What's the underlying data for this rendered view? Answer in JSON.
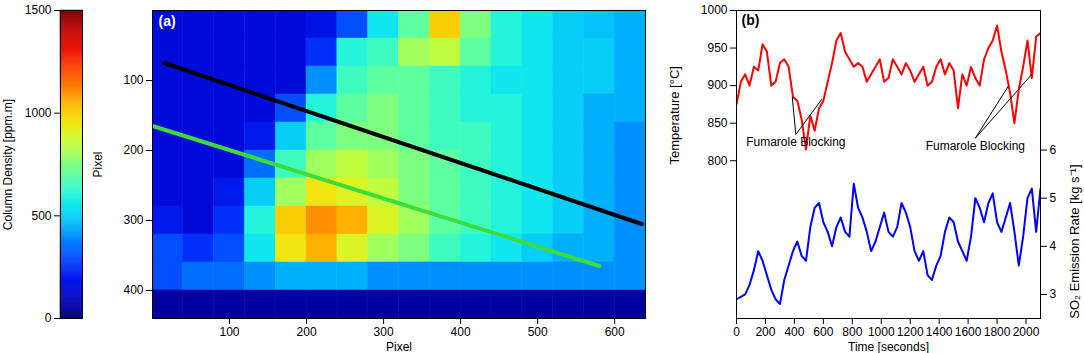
{
  "chart_data": [
    {
      "type": "heatmap",
      "panel_label": "(a)",
      "xlabel": "Pixel",
      "ylabel": "Pixel",
      "xlim": [
        0,
        640
      ],
      "xticks": [
        100,
        200,
        300,
        400,
        500,
        600
      ],
      "ylim": [
        0,
        440
      ],
      "yticks": [
        100,
        200,
        300,
        400
      ],
      "heatmap": {
        "x": [
          20,
          60,
          100,
          140,
          180,
          220,
          260,
          300,
          340,
          380,
          420,
          460,
          500,
          540,
          580,
          620
        ],
        "y": [
          20,
          60,
          100,
          140,
          180,
          220,
          260,
          300,
          340,
          380,
          420
        ],
        "values": [
          [
            150,
            150,
            150,
            150,
            150,
            180,
            300,
            550,
            700,
            1000,
            750,
            600,
            550,
            500,
            480,
            450
          ],
          [
            150,
            150,
            150,
            150,
            150,
            250,
            600,
            650,
            800,
            850,
            700,
            600,
            550,
            500,
            500,
            450
          ],
          [
            150,
            150,
            150,
            150,
            150,
            400,
            650,
            700,
            700,
            650,
            600,
            550,
            550,
            500,
            500,
            450
          ],
          [
            150,
            150,
            150,
            150,
            300,
            600,
            700,
            750,
            700,
            650,
            600,
            600,
            550,
            500,
            450,
            450
          ],
          [
            150,
            150,
            150,
            200,
            500,
            700,
            750,
            750,
            700,
            650,
            650,
            600,
            550,
            500,
            450,
            400
          ],
          [
            150,
            150,
            150,
            350,
            650,
            800,
            850,
            800,
            750,
            700,
            650,
            600,
            550,
            500,
            450,
            400
          ],
          [
            150,
            150,
            200,
            500,
            800,
            950,
            900,
            850,
            750,
            700,
            650,
            600,
            550,
            500,
            450,
            400
          ],
          [
            200,
            150,
            250,
            600,
            1000,
            1100,
            1050,
            900,
            800,
            700,
            650,
            600,
            550,
            500,
            450,
            400
          ],
          [
            300,
            250,
            300,
            550,
            950,
            1050,
            900,
            800,
            750,
            650,
            600,
            550,
            500,
            450,
            450,
            400
          ],
          [
            300,
            350,
            350,
            400,
            450,
            450,
            450,
            400,
            400,
            400,
            400,
            400,
            400,
            400,
            400,
            400
          ],
          [
            50,
            50,
            50,
            50,
            50,
            50,
            50,
            50,
            50,
            50,
            50,
            50,
            50,
            50,
            50,
            50
          ]
        ]
      },
      "colorbar": {
        "label": "Column Density [ppm.m]",
        "range": [
          0,
          1500
        ],
        "ticks": [
          0,
          500,
          1000,
          1500
        ]
      },
      "lines": [
        {
          "color": "#000000",
          "x": [
            15,
            635
          ],
          "y": [
            75,
            305
          ]
        },
        {
          "color": "#3cdc3c",
          "x": [
            0,
            580
          ],
          "y": [
            165,
            365
          ]
        }
      ]
    },
    {
      "type": "line",
      "panel_label": "(b)",
      "xlabel": "Time [seconds]",
      "ylabel": "Temperature [°C]",
      "y2label": "SO₂ Emission Rate [kg s⁻¹]",
      "xlim": [
        0,
        2100
      ],
      "xticks": [
        0,
        200,
        400,
        600,
        800,
        1000,
        1200,
        1400,
        1600,
        1800,
        2000
      ],
      "ylim": [
        590,
        1000
      ],
      "yticks": [
        800,
        850,
        900,
        950,
        1000
      ],
      "y2lim": [
        2.5,
        8.9
      ],
      "y2ticks": [
        3,
        4,
        5,
        6
      ],
      "x": [
        0,
        30,
        60,
        90,
        120,
        150,
        180,
        210,
        240,
        270,
        300,
        330,
        360,
        390,
        420,
        450,
        480,
        510,
        540,
        570,
        600,
        630,
        660,
        690,
        720,
        750,
        780,
        810,
        840,
        870,
        900,
        930,
        960,
        990,
        1020,
        1050,
        1080,
        1110,
        1140,
        1170,
        1200,
        1230,
        1260,
        1290,
        1320,
        1350,
        1380,
        1410,
        1440,
        1470,
        1500,
        1530,
        1560,
        1590,
        1620,
        1650,
        1680,
        1710,
        1740,
        1770,
        1800,
        1830,
        1860,
        1890,
        1920,
        1950,
        1980,
        2010,
        2040,
        2070,
        2100
      ],
      "series": [
        {
          "color": "#ff0000",
          "axis": "y",
          "values": [
            875,
            905,
            915,
            900,
            925,
            920,
            955,
            945,
            900,
            905,
            930,
            935,
            925,
            885,
            880,
            855,
            815,
            860,
            840,
            870,
            880,
            905,
            930,
            960,
            970,
            945,
            935,
            925,
            930,
            925,
            905,
            915,
            925,
            935,
            905,
            910,
            935,
            925,
            915,
            930,
            920,
            905,
            915,
            925,
            900,
            905,
            925,
            935,
            915,
            930,
            920,
            870,
            915,
            900,
            925,
            910,
            900,
            935,
            950,
            960,
            980,
            945,
            920,
            890,
            850,
            895,
            925,
            960,
            910,
            965,
            970
          ]
        },
        {
          "color": "#0000ff",
          "axis": "y2",
          "values": [
            2.9,
            2.95,
            3.0,
            3.2,
            3.5,
            3.9,
            3.7,
            3.4,
            3.1,
            2.9,
            2.8,
            3.3,
            3.6,
            3.9,
            4.1,
            3.8,
            3.7,
            4.4,
            4.8,
            4.9,
            4.5,
            4.3,
            4.0,
            4.4,
            4.6,
            4.3,
            4.2,
            5.3,
            4.8,
            4.6,
            4.3,
            3.9,
            4.1,
            4.4,
            4.7,
            4.3,
            4.2,
            4.4,
            4.9,
            4.7,
            4.4,
            3.9,
            3.7,
            3.9,
            3.4,
            3.3,
            3.6,
            3.8,
            4.3,
            4.6,
            4.5,
            4.1,
            3.9,
            3.7,
            4.2,
            5.0,
            4.8,
            4.5,
            4.9,
            5.1,
            4.5,
            4.3,
            4.6,
            4.9,
            4.3,
            3.6,
            4.2,
            5.0,
            5.2,
            4.3,
            5.2
          ]
        }
      ],
      "annotations": [
        {
          "text": "Fumarole Blocking",
          "x": 410,
          "y": 835,
          "points": [
            [
              385,
              885
            ],
            [
              590,
              882
            ]
          ]
        },
        {
          "text": "Fumarole Blocking",
          "x": 1650,
          "y": 830,
          "points": [
            [
              1880,
              900
            ],
            [
              2040,
              915
            ]
          ]
        }
      ]
    }
  ]
}
